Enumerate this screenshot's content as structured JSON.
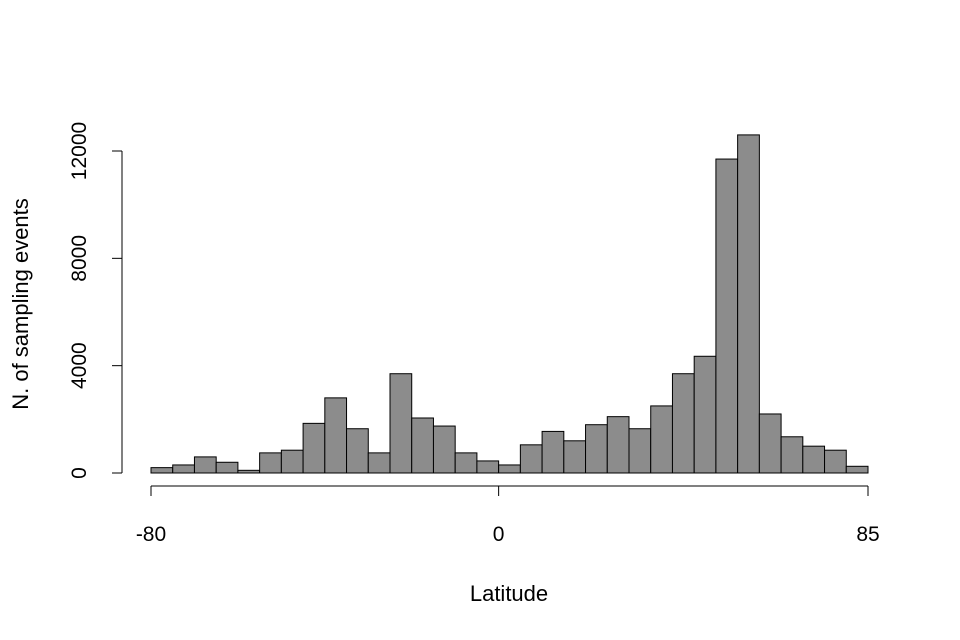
{
  "chart_data": {
    "type": "bar",
    "subtype": "histogram",
    "xlabel": "Latitude",
    "ylabel": "N. of sampling events",
    "x_ticks": [
      -80,
      0,
      85
    ],
    "y_ticks": [
      0,
      4000,
      8000,
      12000
    ],
    "ylim": [
      0,
      12000
    ],
    "bin_width": 5,
    "bins": [
      {
        "start": -80,
        "end": -75,
        "value": 200
      },
      {
        "start": -75,
        "end": -70,
        "value": 300
      },
      {
        "start": -70,
        "end": -65,
        "value": 600
      },
      {
        "start": -65,
        "end": -60,
        "value": 400
      },
      {
        "start": -60,
        "end": -55,
        "value": 100
      },
      {
        "start": -55,
        "end": -50,
        "value": 750
      },
      {
        "start": -50,
        "end": -45,
        "value": 850
      },
      {
        "start": -45,
        "end": -40,
        "value": 1850
      },
      {
        "start": -40,
        "end": -35,
        "value": 2800
      },
      {
        "start": -35,
        "end": -30,
        "value": 1650
      },
      {
        "start": -30,
        "end": -25,
        "value": 750
      },
      {
        "start": -25,
        "end": -20,
        "value": 3700
      },
      {
        "start": -20,
        "end": -15,
        "value": 2050
      },
      {
        "start": -15,
        "end": -10,
        "value": 1750
      },
      {
        "start": -10,
        "end": -5,
        "value": 750
      },
      {
        "start": -5,
        "end": 0,
        "value": 450
      },
      {
        "start": 0,
        "end": 5,
        "value": 300
      },
      {
        "start": 5,
        "end": 10,
        "value": 1050
      },
      {
        "start": 10,
        "end": 15,
        "value": 1550
      },
      {
        "start": 15,
        "end": 20,
        "value": 1200
      },
      {
        "start": 20,
        "end": 25,
        "value": 1800
      },
      {
        "start": 25,
        "end": 30,
        "value": 2100
      },
      {
        "start": 30,
        "end": 35,
        "value": 1650
      },
      {
        "start": 35,
        "end": 40,
        "value": 2500
      },
      {
        "start": 40,
        "end": 45,
        "value": 3700
      },
      {
        "start": 45,
        "end": 50,
        "value": 4350
      },
      {
        "start": 50,
        "end": 55,
        "value": 11700
      },
      {
        "start": 55,
        "end": 60,
        "value": 12600
      },
      {
        "start": 60,
        "end": 65,
        "value": 2200
      },
      {
        "start": 65,
        "end": 70,
        "value": 1350
      },
      {
        "start": 70,
        "end": 75,
        "value": 1000
      },
      {
        "start": 75,
        "end": 80,
        "value": 850
      },
      {
        "start": 80,
        "end": 85,
        "value": 250
      }
    ],
    "colors": {
      "bar_fill": "#8c8c8c",
      "bar_stroke": "#000000",
      "axis": "#000000"
    },
    "grid": false,
    "legend": "none"
  }
}
